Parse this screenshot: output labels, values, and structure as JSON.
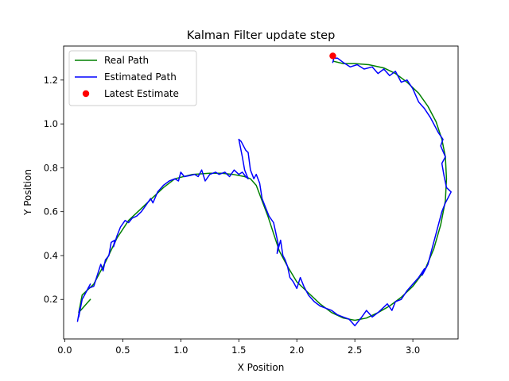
{
  "chart_data": {
    "type": "line",
    "title": "Kalman Filter update step",
    "xlabel": "X Position",
    "ylabel": "Y Position",
    "xlim": [
      -0.01,
      3.39
    ],
    "ylim": [
      0.02,
      1.355
    ],
    "x_ticks": [
      0.0,
      0.5,
      1.0,
      1.5,
      2.0,
      2.5,
      3.0
    ],
    "x_tick_labels": [
      "0.0",
      "0.5",
      "1.0",
      "1.5",
      "2.0",
      "2.5",
      "3.0"
    ],
    "y_ticks": [
      0.2,
      0.4,
      0.6,
      0.8,
      1.0,
      1.2
    ],
    "y_tick_labels": [
      "0.2",
      "0.4",
      "0.6",
      "0.8",
      "1.0",
      "1.2"
    ],
    "grid": false,
    "legend_position": "top-left",
    "series": [
      {
        "name": "Real Path",
        "color": "#008000",
        "kind": "line",
        "points": [
          [
            0.22,
            0.2
          ],
          [
            0.12,
            0.14
          ],
          [
            0.15,
            0.22
          ],
          [
            0.25,
            0.27
          ],
          [
            0.35,
            0.37
          ],
          [
            0.45,
            0.48
          ],
          [
            0.55,
            0.56
          ],
          [
            0.65,
            0.61
          ],
          [
            0.75,
            0.66
          ],
          [
            0.85,
            0.71
          ],
          [
            0.95,
            0.75
          ],
          [
            1.1,
            0.77
          ],
          [
            1.25,
            0.775
          ],
          [
            1.35,
            0.775
          ],
          [
            1.45,
            0.77
          ],
          [
            1.55,
            0.76
          ],
          [
            1.6,
            0.75
          ],
          [
            1.65,
            0.72
          ],
          [
            1.7,
            0.65
          ],
          [
            1.75,
            0.58
          ],
          [
            1.8,
            0.5
          ],
          [
            1.85,
            0.42
          ],
          [
            1.92,
            0.35
          ],
          [
            2.0,
            0.28
          ],
          [
            2.1,
            0.23
          ],
          [
            2.2,
            0.18
          ],
          [
            2.3,
            0.14
          ],
          [
            2.4,
            0.115
          ],
          [
            2.5,
            0.105
          ],
          [
            2.6,
            0.115
          ],
          [
            2.7,
            0.14
          ],
          [
            2.8,
            0.17
          ],
          [
            2.9,
            0.21
          ],
          [
            3.0,
            0.26
          ],
          [
            3.1,
            0.33
          ],
          [
            3.18,
            0.43
          ],
          [
            3.24,
            0.54
          ],
          [
            3.28,
            0.65
          ],
          [
            3.29,
            0.75
          ],
          [
            3.28,
            0.85
          ],
          [
            3.25,
            0.93
          ],
          [
            3.2,
            1.01
          ],
          [
            3.13,
            1.08
          ],
          [
            3.05,
            1.14
          ],
          [
            2.95,
            1.19
          ],
          [
            2.85,
            1.23
          ],
          [
            2.75,
            1.255
          ],
          [
            2.62,
            1.27
          ],
          [
            2.5,
            1.275
          ],
          [
            2.4,
            1.275
          ],
          [
            2.32,
            1.285
          ]
        ]
      },
      {
        "name": "Estimated Path",
        "color": "#0000ff",
        "kind": "line",
        "points": [
          [
            0.11,
            0.1
          ],
          [
            0.13,
            0.16
          ],
          [
            0.12,
            0.12
          ],
          [
            0.15,
            0.2
          ],
          [
            0.18,
            0.23
          ],
          [
            0.16,
            0.21
          ],
          [
            0.22,
            0.27
          ],
          [
            0.2,
            0.25
          ],
          [
            0.25,
            0.26
          ],
          [
            0.31,
            0.36
          ],
          [
            0.33,
            0.33
          ],
          [
            0.35,
            0.38
          ],
          [
            0.38,
            0.4
          ],
          [
            0.4,
            0.46
          ],
          [
            0.43,
            0.47
          ],
          [
            0.42,
            0.44
          ],
          [
            0.45,
            0.49
          ],
          [
            0.48,
            0.53
          ],
          [
            0.52,
            0.56
          ],
          [
            0.55,
            0.55
          ],
          [
            0.58,
            0.57
          ],
          [
            0.62,
            0.58
          ],
          [
            0.66,
            0.6
          ],
          [
            0.7,
            0.63
          ],
          [
            0.74,
            0.66
          ],
          [
            0.76,
            0.64
          ],
          [
            0.8,
            0.69
          ],
          [
            0.85,
            0.72
          ],
          [
            0.9,
            0.74
          ],
          [
            0.95,
            0.75
          ],
          [
            0.98,
            0.74
          ],
          [
            1.0,
            0.78
          ],
          [
            1.03,
            0.76
          ],
          [
            1.08,
            0.765
          ],
          [
            1.12,
            0.77
          ],
          [
            1.15,
            0.76
          ],
          [
            1.18,
            0.79
          ],
          [
            1.21,
            0.74
          ],
          [
            1.25,
            0.77
          ],
          [
            1.3,
            0.78
          ],
          [
            1.33,
            0.77
          ],
          [
            1.38,
            0.78
          ],
          [
            1.42,
            0.76
          ],
          [
            1.46,
            0.79
          ],
          [
            1.5,
            0.77
          ],
          [
            1.53,
            0.78
          ],
          [
            1.56,
            0.76
          ],
          [
            1.58,
            0.75
          ],
          [
            1.55,
            0.79
          ],
          [
            1.53,
            0.85
          ],
          [
            1.5,
            0.93
          ],
          [
            1.52,
            0.92
          ],
          [
            1.56,
            0.88
          ],
          [
            1.58,
            0.87
          ],
          [
            1.6,
            0.79
          ],
          [
            1.63,
            0.75
          ],
          [
            1.65,
            0.77
          ],
          [
            1.68,
            0.73
          ],
          [
            1.7,
            0.66
          ],
          [
            1.73,
            0.62
          ],
          [
            1.76,
            0.58
          ],
          [
            1.8,
            0.55
          ],
          [
            1.82,
            0.5
          ],
          [
            1.84,
            0.45
          ],
          [
            1.83,
            0.41
          ],
          [
            1.86,
            0.47
          ],
          [
            1.88,
            0.4
          ],
          [
            1.9,
            0.38
          ],
          [
            1.92,
            0.35
          ],
          [
            1.94,
            0.3
          ],
          [
            1.97,
            0.28
          ],
          [
            2.0,
            0.25
          ],
          [
            2.03,
            0.3
          ],
          [
            2.06,
            0.26
          ],
          [
            2.1,
            0.22
          ],
          [
            2.15,
            0.19
          ],
          [
            2.2,
            0.17
          ],
          [
            2.25,
            0.16
          ],
          [
            2.3,
            0.15
          ],
          [
            2.35,
            0.13
          ],
          [
            2.4,
            0.12
          ],
          [
            2.45,
            0.11
          ],
          [
            2.5,
            0.08
          ],
          [
            2.53,
            0.1
          ],
          [
            2.56,
            0.12
          ],
          [
            2.6,
            0.15
          ],
          [
            2.65,
            0.12
          ],
          [
            2.7,
            0.14
          ],
          [
            2.74,
            0.16
          ],
          [
            2.78,
            0.18
          ],
          [
            2.82,
            0.15
          ],
          [
            2.85,
            0.19
          ],
          [
            2.9,
            0.2
          ],
          [
            2.95,
            0.24
          ],
          [
            3.0,
            0.27
          ],
          [
            3.05,
            0.3
          ],
          [
            3.1,
            0.34
          ],
          [
            3.08,
            0.31
          ],
          [
            3.13,
            0.36
          ],
          [
            3.16,
            0.42
          ],
          [
            3.19,
            0.48
          ],
          [
            3.22,
            0.54
          ],
          [
            3.25,
            0.6
          ],
          [
            3.28,
            0.64
          ],
          [
            3.3,
            0.66
          ],
          [
            3.33,
            0.69
          ],
          [
            3.29,
            0.71
          ],
          [
            3.27,
            0.76
          ],
          [
            3.25,
            0.82
          ],
          [
            3.28,
            0.85
          ],
          [
            3.24,
            0.9
          ],
          [
            3.26,
            0.93
          ],
          [
            3.22,
            0.96
          ],
          [
            3.18,
            1.0
          ],
          [
            3.15,
            1.03
          ],
          [
            3.1,
            1.07
          ],
          [
            3.05,
            1.1
          ],
          [
            3.0,
            1.16
          ],
          [
            2.95,
            1.2
          ],
          [
            2.9,
            1.19
          ],
          [
            2.85,
            1.24
          ],
          [
            2.8,
            1.22
          ],
          [
            2.75,
            1.25
          ],
          [
            2.7,
            1.23
          ],
          [
            2.65,
            1.26
          ],
          [
            2.58,
            1.25
          ],
          [
            2.52,
            1.27
          ],
          [
            2.46,
            1.26
          ],
          [
            2.4,
            1.28
          ],
          [
            2.35,
            1.3
          ],
          [
            2.32,
            1.3
          ],
          [
            2.31,
            1.28
          ]
        ]
      },
      {
        "name": "Latest Estimate",
        "color": "#ff0000",
        "kind": "scatter",
        "points": [
          [
            2.31,
            1.31
          ]
        ]
      }
    ]
  }
}
